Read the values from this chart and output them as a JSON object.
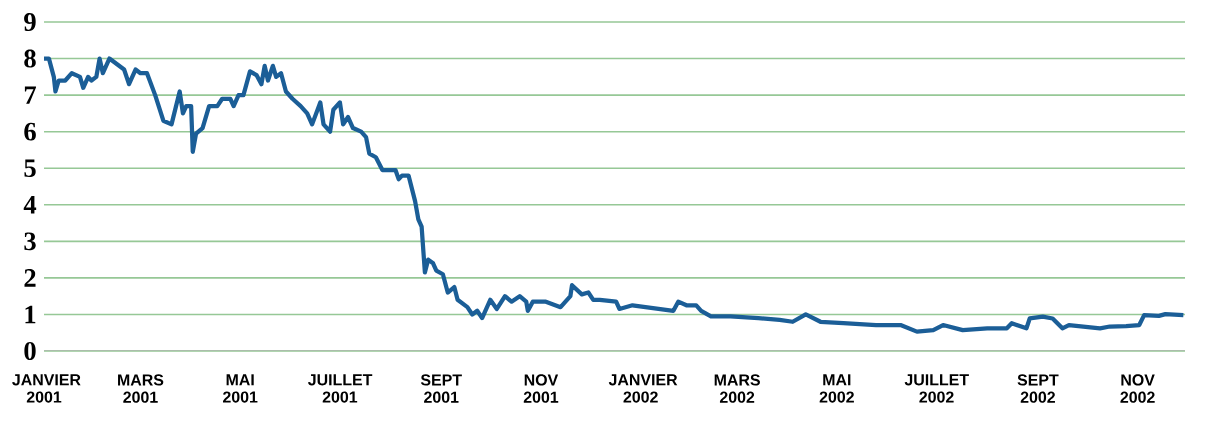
{
  "chart_data": {
    "type": "line",
    "color": "#1b5e97",
    "grid": "y",
    "marker": "none",
    "line_style": "solid",
    "x": [
      "2001-01-01",
      "2001-01-04",
      "2001-01-07",
      "2001-01-08",
      "2001-01-10",
      "2001-01-14",
      "2001-01-18",
      "2001-01-23",
      "2001-01-25",
      "2001-01-28",
      "2001-01-30",
      "2001-02-02",
      "2001-02-04",
      "2001-02-06",
      "2001-02-10",
      "2001-02-19",
      "2001-02-22",
      "2001-02-26",
      "2001-03-01",
      "2001-03-05",
      "2001-03-10",
      "2001-03-15",
      "2001-03-20",
      "2001-03-25",
      "2001-03-27",
      "2001-03-29",
      "2001-04-01",
      "2001-04-02",
      "2001-04-04",
      "2001-04-08",
      "2001-04-12",
      "2001-04-17",
      "2001-04-20",
      "2001-04-25",
      "2001-04-27",
      "2001-04-30",
      "2001-05-03",
      "2001-05-07",
      "2001-05-11",
      "2001-05-14",
      "2001-05-16",
      "2001-05-18",
      "2001-05-21",
      "2001-05-23",
      "2001-05-26",
      "2001-05-29",
      "2001-06-02",
      "2001-06-07",
      "2001-06-11",
      "2001-06-14",
      "2001-06-19",
      "2001-06-21",
      "2001-06-25",
      "2001-06-27",
      "2001-07-01",
      "2001-07-03",
      "2001-07-06",
      "2001-07-09",
      "2001-07-14",
      "2001-07-17",
      "2001-07-19",
      "2001-07-23",
      "2001-07-27",
      "2001-08-04",
      "2001-08-06",
      "2001-08-08",
      "2001-08-12",
      "2001-08-16",
      "2001-08-18",
      "2001-08-20",
      "2001-08-22",
      "2001-08-24",
      "2001-08-27",
      "2001-08-29",
      "2001-09-02",
      "2001-09-05",
      "2001-09-09",
      "2001-09-11",
      "2001-09-17",
      "2001-09-20",
      "2001-09-23",
      "2001-09-26",
      "2001-10-01",
      "2001-10-05",
      "2001-10-10",
      "2001-10-14",
      "2001-10-19",
      "2001-10-23",
      "2001-10-24",
      "2001-10-27",
      "2001-11-04",
      "2001-11-13",
      "2001-11-19",
      "2001-11-20",
      "2001-11-26",
      "2001-11-30",
      "2001-12-03",
      "2001-12-07",
      "2001-12-17",
      "2001-12-19",
      "2001-12-27",
      "2002-01-21",
      "2002-01-24",
      "2002-01-29",
      "2002-02-04",
      "2002-02-07",
      "2002-02-13",
      "2002-02-25",
      "2002-03-14",
      "2002-03-27",
      "2002-04-04",
      "2002-04-12",
      "2002-04-21",
      "2002-05-05",
      "2002-05-25",
      "2002-06-09",
      "2002-06-19",
      "2002-06-29",
      "2002-07-05",
      "2002-07-17",
      "2002-08-01",
      "2002-08-13",
      "2002-08-16",
      "2002-08-25",
      "2002-08-27",
      "2002-09-04",
      "2002-09-10",
      "2002-09-16",
      "2002-09-20",
      "2002-10-09",
      "2002-10-15",
      "2002-10-25",
      "2002-11-02",
      "2002-11-05",
      "2002-11-14",
      "2002-11-18",
      "2002-11-29"
    ],
    "values": [
      8.0,
      8.0,
      7.5,
      7.1,
      7.4,
      7.4,
      7.6,
      7.5,
      7.2,
      7.5,
      7.4,
      7.5,
      8.0,
      7.6,
      8.0,
      7.7,
      7.3,
      7.7,
      7.6,
      7.6,
      7.0,
      6.3,
      6.2,
      7.1,
      6.5,
      6.7,
      6.7,
      5.45,
      5.95,
      6.1,
      6.7,
      6.7,
      6.9,
      6.9,
      6.7,
      7.0,
      7.0,
      7.65,
      7.55,
      7.3,
      7.8,
      7.4,
      7.8,
      7.5,
      7.6,
      7.1,
      6.9,
      6.7,
      6.5,
      6.2,
      6.8,
      6.2,
      6.0,
      6.6,
      6.8,
      6.2,
      6.4,
      6.1,
      6.0,
      5.85,
      5.4,
      5.3,
      4.95,
      4.95,
      4.7,
      4.8,
      4.8,
      4.1,
      3.6,
      3.4,
      2.15,
      2.5,
      2.4,
      2.2,
      2.1,
      1.6,
      1.75,
      1.4,
      1.2,
      1.0,
      1.1,
      0.9,
      1.4,
      1.15,
      1.5,
      1.35,
      1.5,
      1.35,
      1.1,
      1.35,
      1.35,
      1.2,
      1.5,
      1.8,
      1.55,
      1.6,
      1.4,
      1.4,
      1.35,
      1.15,
      1.25,
      1.1,
      1.35,
      1.25,
      1.25,
      1.1,
      0.95,
      0.95,
      0.9,
      0.85,
      0.8,
      1.0,
      0.8,
      0.76,
      0.71,
      0.71,
      0.53,
      0.57,
      0.71,
      0.57,
      0.62,
      0.62,
      0.76,
      0.62,
      0.89,
      0.94,
      0.89,
      0.62,
      0.71,
      0.62,
      0.67,
      0.68,
      0.71,
      0.98,
      0.96,
      1.01,
      0.98
    ],
    "xlim": [
      "2001-01-01",
      "2002-11-30"
    ],
    "ylim": [
      0,
      9
    ],
    "yticks": [
      0,
      1,
      2,
      3,
      4,
      5,
      6,
      7,
      8,
      9
    ],
    "xticks": [
      {
        "value": "2001-01-01",
        "label": "JANVIER 2001"
      },
      {
        "value": "2001-03-01",
        "label": "MARS 2001"
      },
      {
        "value": "2001-05-01",
        "label": "MAI 2001"
      },
      {
        "value": "2001-07-01",
        "label": "JUILLET 2001"
      },
      {
        "value": "2001-09-01",
        "label": "SEPT 2001"
      },
      {
        "value": "2001-11-01",
        "label": "NOV 2001"
      },
      {
        "value": "2002-01-01",
        "label": "JANVIER 2002"
      },
      {
        "value": "2002-03-01",
        "label": "MARS 2002"
      },
      {
        "value": "2002-05-01",
        "label": "MAI 2002"
      },
      {
        "value": "2002-07-01",
        "label": "JUILLET 2002"
      },
      {
        "value": "2002-09-01",
        "label": "SEPT 2002"
      },
      {
        "value": "2002-11-01",
        "label": "NOV 2002"
      }
    ]
  }
}
